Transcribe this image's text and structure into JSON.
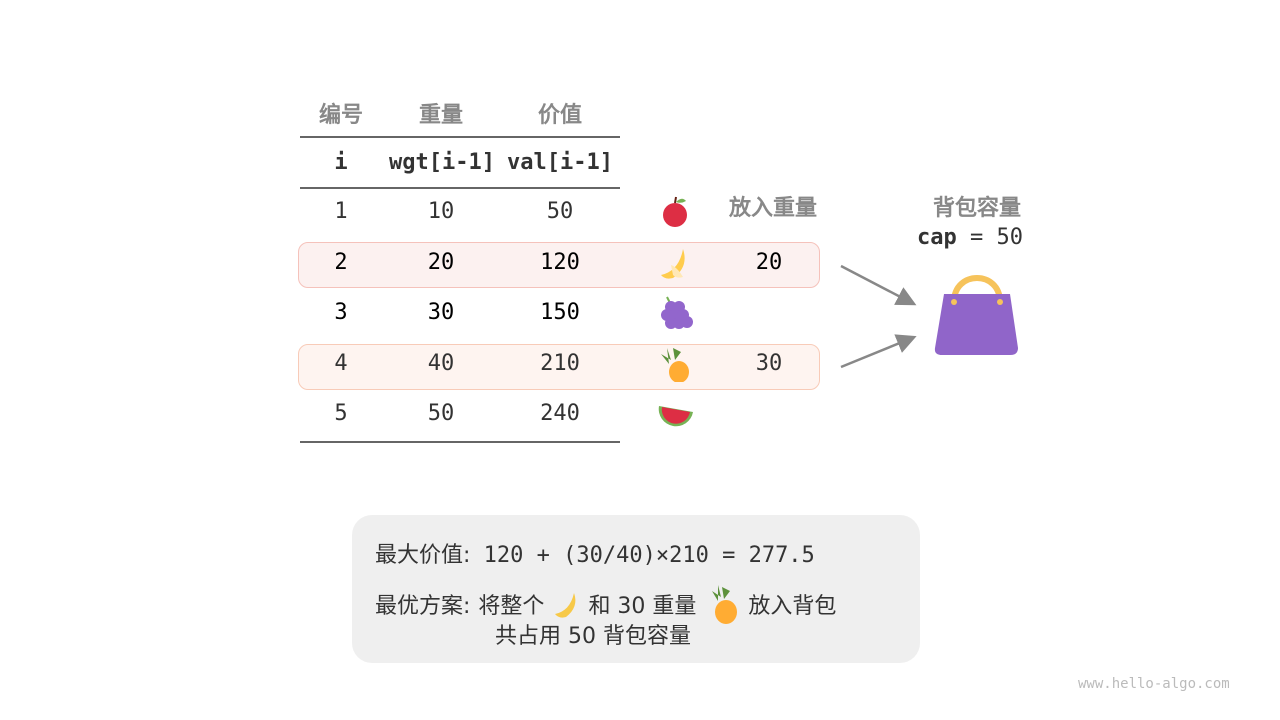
{
  "headers": {
    "id": "编号",
    "weight": "重量",
    "value": "价值",
    "i": "i",
    "wgt": "wgt[i-1]",
    "val": "val[i-1]",
    "put": "放入重量"
  },
  "rows": [
    {
      "i": "1",
      "w": "10",
      "v": "50",
      "fruit": "apple",
      "put": ""
    },
    {
      "i": "2",
      "w": "20",
      "v": "120",
      "fruit": "banana",
      "put": "20"
    },
    {
      "i": "3",
      "w": "30",
      "v": "150",
      "fruit": "grapes",
      "put": ""
    },
    {
      "i": "4",
      "w": "40",
      "v": "210",
      "fruit": "pineapple",
      "put": "30"
    },
    {
      "i": "5",
      "w": "50",
      "v": "240",
      "fruit": "watermelon",
      "put": ""
    }
  ],
  "bag": {
    "title": "背包容量",
    "cap_label": "cap",
    "cap_value": "= 50",
    "icon": "handbag-icon",
    "color": "#9065c9"
  },
  "summary": {
    "max_label": "最大价值:",
    "max_expr": "120 + (30/40)×210 = 277.5",
    "plan_label": "最优方案:",
    "plan_p1": "将整个",
    "plan_p2": "和 30 重量",
    "plan_p3": "放入背包",
    "plan_line2a": "共占用 50 ",
    "plan_line2b": "背包容量"
  },
  "highlight_colors": {
    "row2": "#fcf1f0",
    "row4": "#fef4f0"
  },
  "watermark": "www.hello-algo.com"
}
